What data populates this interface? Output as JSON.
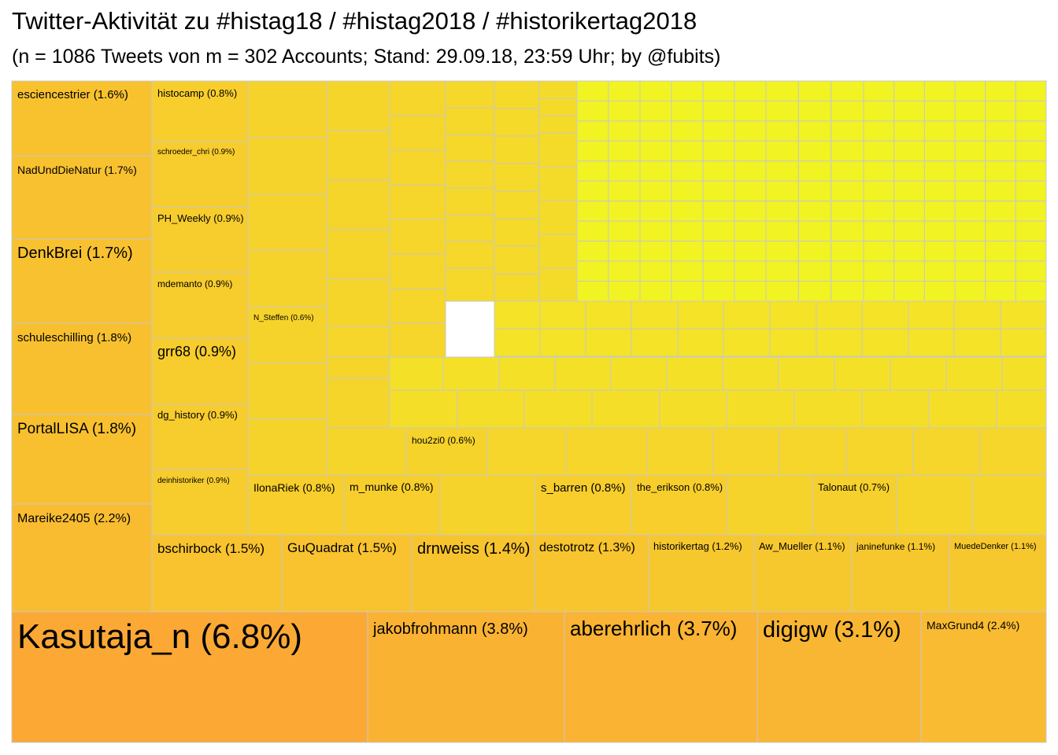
{
  "header": {
    "title": "Twitter-Aktivität zu #histag18 / #histag2018 / #historikertag2018",
    "subtitle": "(n = 1086 Tweets von m = 302 Accounts; Stand: 29.09.18, 23:59 Uhr; by @fubits)"
  },
  "chart_data": {
    "type": "treemap",
    "title": "Twitter-Aktivität zu #histag18 / #histag2018 / #historikertag2018",
    "subtitle": "(n = 1086 Tweets von m = 302 Accounts; Stand: 29.09.18, 23:59 Uhr; by @fubits)",
    "unit": "% of tweets",
    "color_scale": {
      "low": "#f2f523",
      "high": "#fba835"
    },
    "labeled": [
      {
        "name": "Kasutaja_n",
        "value": 6.8
      },
      {
        "name": "jakobfrohmann",
        "value": 3.8
      },
      {
        "name": "aberehrlich",
        "value": 3.7
      },
      {
        "name": "digigw",
        "value": 3.1
      },
      {
        "name": "MaxGrund4",
        "value": 2.4
      },
      {
        "name": "Mareike2405",
        "value": 2.2
      },
      {
        "name": "PortalLISA",
        "value": 1.8
      },
      {
        "name": "schuleschilling",
        "value": 1.8
      },
      {
        "name": "DenkBrei",
        "value": 1.7
      },
      {
        "name": "NadUndDieNatur",
        "value": 1.7
      },
      {
        "name": "esciencestrier",
        "value": 1.6
      },
      {
        "name": "bschirbock",
        "value": 1.5
      },
      {
        "name": "GuQuadrat",
        "value": 1.5
      },
      {
        "name": "drnweiss",
        "value": 1.4
      },
      {
        "name": "destotrotz",
        "value": 1.3
      },
      {
        "name": "historikertag",
        "value": 1.2
      },
      {
        "name": "Aw_Mueller",
        "value": 1.1
      },
      {
        "name": "janinefunke",
        "value": 1.1
      },
      {
        "name": "MuedeDenker",
        "value": 1.1
      },
      {
        "name": "histocamp",
        "value": 0.8
      },
      {
        "name": "schroeder_chri",
        "value": 0.9
      },
      {
        "name": "PH_Weekly",
        "value": 0.9
      },
      {
        "name": "mdemanto",
        "value": 0.9
      },
      {
        "name": "grr68",
        "value": 0.9
      },
      {
        "name": "dg_history",
        "value": 0.9
      },
      {
        "name": "deinhistoriker",
        "value": 0.9
      },
      {
        "name": "IlonaRiek",
        "value": 0.8
      },
      {
        "name": "m_munke",
        "value": 0.8
      },
      {
        "name": "s_barren",
        "value": 0.8
      },
      {
        "name": "the_erikson",
        "value": 0.8
      },
      {
        "name": "Talonaut",
        "value": 0.7
      },
      {
        "name": "hou2zi0",
        "value": 0.6
      },
      {
        "name": "N_Steffen",
        "value": 0.6
      }
    ]
  }
}
